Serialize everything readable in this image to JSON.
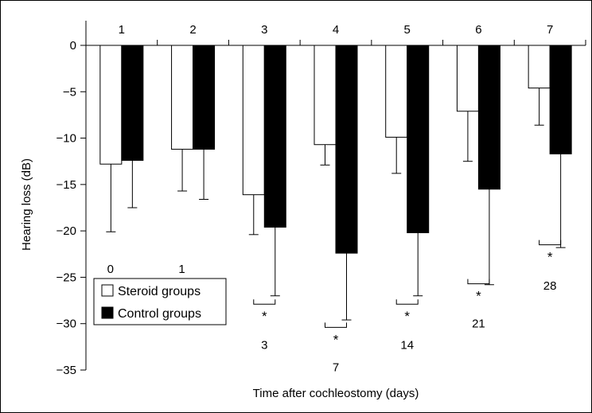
{
  "chart_data": {
    "type": "bar",
    "categories": [
      "1",
      "2",
      "3",
      "4",
      "5",
      "6",
      "7"
    ],
    "series": [
      {
        "name": "Steroid groups",
        "color": "#ffffff",
        "values": [
          -12.8,
          -11.2,
          -16.1,
          -10.7,
          -9.9,
          -7.1,
          -4.6
        ],
        "errors": [
          7.3,
          4.5,
          4.3,
          2.2,
          3.9,
          5.4,
          4.0
        ]
      },
      {
        "name": "Control groups",
        "color": "#000000",
        "values": [
          -12.4,
          -11.2,
          -19.6,
          -22.4,
          -20.2,
          -15.5,
          -11.7
        ],
        "errors": [
          5.1,
          5.4,
          7.4,
          7.2,
          6.8,
          10.3,
          10.1
        ]
      }
    ],
    "annotations": [
      {
        "category": "1",
        "label": "0",
        "y": -24.1,
        "bracket": false
      },
      {
        "category": "2",
        "label": "1",
        "y": -24.1,
        "bracket": false
      },
      {
        "category": "3",
        "label": "3",
        "y": -32.3,
        "bracket": true,
        "bracket_y": -27.9
      },
      {
        "category": "4",
        "label": "7",
        "y": -34.7,
        "bracket": true,
        "bracket_y": -30.4
      },
      {
        "category": "5",
        "label": "14",
        "y": -32.3,
        "bracket": true,
        "bracket_y": -27.9
      },
      {
        "category": "6",
        "label": "21",
        "y": -30.0,
        "bracket": true,
        "bracket_y": -25.7
      },
      {
        "category": "7",
        "label": "28",
        "y": -25.9,
        "bracket": true,
        "bracket_y": -21.5
      }
    ],
    "significance_marker": "*",
    "xlabel": "Time after cochleostomy (days)",
    "ylabel": "Hearing loss (dB)",
    "yticks": [
      0,
      -5,
      -10,
      -15,
      -20,
      -25,
      -30,
      -35
    ],
    "ytick_labels": [
      "0",
      "−5",
      "−10",
      "−15",
      "−20",
      "−25",
      "−30",
      "−35"
    ],
    "ylim": [
      -35,
      0
    ],
    "legend_position": "bottom-left",
    "grid": false
  }
}
